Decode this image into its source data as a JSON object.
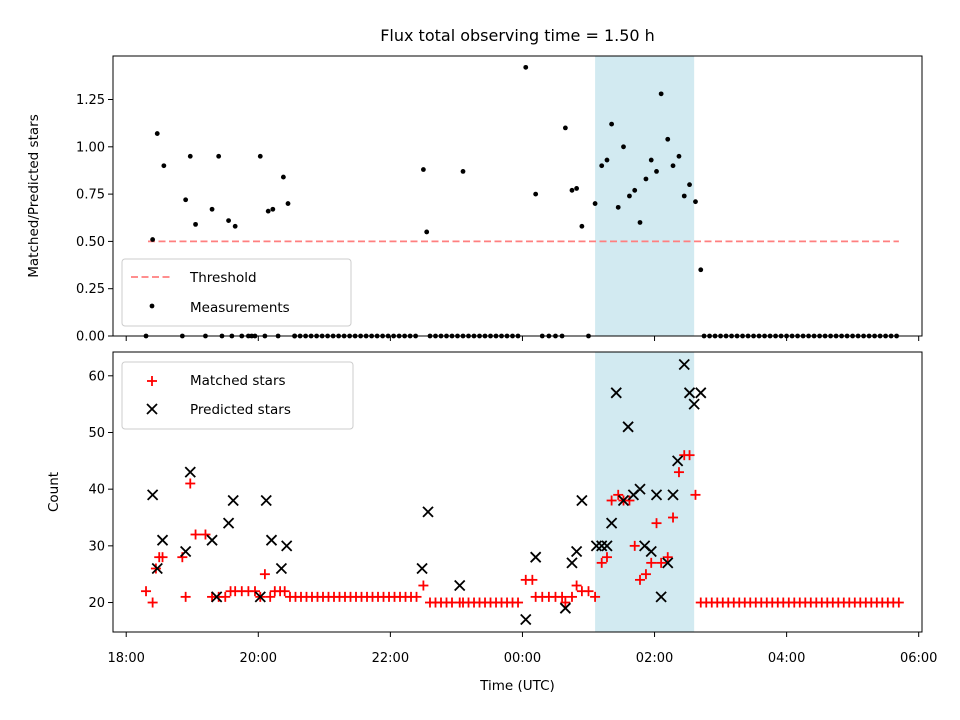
{
  "colors": {
    "match_marker": "#ff0000",
    "pred_marker": "#000000",
    "measure_marker": "#000000",
    "threshold_line": "#ff7f7f",
    "highlight_band": "#add8e6"
  },
  "chart_data": [
    {
      "type": "scatter",
      "title": "Flux total observing time = 1.50 h",
      "xlabel": "",
      "ylabel": "Matched/Predicted stars",
      "xlim_hours": [
        17.8,
        30.05
      ],
      "ylim": [
        0,
        1.48
      ],
      "yticks": [
        "0.00",
        "0.25",
        "0.50",
        "0.75",
        "1.00",
        "1.25"
      ],
      "highlight_band_hours": [
        25.1,
        26.6
      ],
      "legend": [
        "Threshold",
        "Measurements"
      ],
      "legend_position": "lower-left",
      "threshold": {
        "name": "Threshold",
        "value": 0.5,
        "x_hours": [
          18.33,
          29.7
        ]
      },
      "series": [
        {
          "name": "Measurements",
          "points": [
            [
              18.3,
              0.0
            ],
            [
              18.4,
              0.51
            ],
            [
              18.47,
              1.07
            ],
            [
              18.57,
              0.9
            ],
            [
              18.85,
              0.0
            ],
            [
              18.9,
              0.72
            ],
            [
              18.97,
              0.95
            ],
            [
              19.05,
              0.59
            ],
            [
              19.2,
              0.0
            ],
            [
              19.3,
              0.67
            ],
            [
              19.4,
              0.95
            ],
            [
              19.45,
              0.0
            ],
            [
              19.55,
              0.61
            ],
            [
              19.6,
              0.0
            ],
            [
              19.65,
              0.58
            ],
            [
              19.75,
              0.0
            ],
            [
              19.85,
              0.0
            ],
            [
              19.9,
              0.0
            ],
            [
              19.95,
              0.0
            ],
            [
              20.03,
              0.95
            ],
            [
              20.1,
              0.0
            ],
            [
              20.15,
              0.66
            ],
            [
              20.22,
              0.67
            ],
            [
              20.3,
              0.0
            ],
            [
              20.38,
              0.84
            ],
            [
              20.45,
              0.7
            ],
            [
              20.55,
              0.0
            ],
            [
              22.5,
              0.88
            ],
            [
              22.55,
              0.55
            ],
            [
              23.1,
              0.87
            ],
            [
              24.05,
              1.42
            ],
            [
              24.2,
              0.75
            ],
            [
              24.3,
              0.0
            ],
            [
              24.4,
              0.0
            ],
            [
              24.5,
              0.0
            ],
            [
              24.6,
              0.0
            ],
            [
              24.65,
              1.1
            ],
            [
              24.75,
              0.77
            ],
            [
              24.82,
              0.78
            ],
            [
              24.9,
              0.58
            ],
            [
              25.0,
              0.0
            ],
            [
              25.1,
              0.7
            ],
            [
              25.2,
              0.9
            ],
            [
              25.28,
              0.93
            ],
            [
              25.35,
              1.12
            ],
            [
              25.45,
              0.68
            ],
            [
              25.53,
              1.0
            ],
            [
              25.62,
              0.74
            ],
            [
              25.7,
              0.77
            ],
            [
              25.78,
              0.6
            ],
            [
              25.87,
              0.83
            ],
            [
              25.95,
              0.93
            ],
            [
              26.03,
              0.87
            ],
            [
              26.1,
              1.28
            ],
            [
              26.2,
              1.04
            ],
            [
              26.28,
              0.9
            ],
            [
              26.37,
              0.95
            ],
            [
              26.45,
              0.74
            ],
            [
              26.53,
              0.8
            ],
            [
              26.62,
              0.71
            ],
            [
              26.7,
              0.35
            ]
          ],
          "zero_run_hours": [
            [
              20.55,
              22.45
            ],
            [
              22.6,
              24.0
            ],
            [
              26.75,
              29.7
            ]
          ],
          "zero_run_step_hours": 0.0833
        }
      ]
    },
    {
      "type": "scatter",
      "title": "",
      "xlabel": "Time (UTC)",
      "ylabel": "Count",
      "xlim_hours": [
        17.8,
        30.05
      ],
      "ylim": [
        14.8,
        64.2
      ],
      "yticks": [
        20,
        30,
        40,
        50,
        60
      ],
      "xtick_hours": [
        18,
        20,
        22,
        24,
        26,
        28,
        30
      ],
      "xtick_labels": [
        "18:00",
        "20:00",
        "22:00",
        "00:00",
        "02:00",
        "04:00",
        "06:00"
      ],
      "highlight_band_hours": [
        25.1,
        26.6
      ],
      "legend": [
        "Matched stars",
        "Predicted stars"
      ],
      "legend_position": "upper-left",
      "series": [
        {
          "name": "Matched stars",
          "marker": "plus",
          "points": [
            [
              18.3,
              22
            ],
            [
              18.4,
              20
            ],
            [
              18.45,
              26
            ],
            [
              18.5,
              28
            ],
            [
              18.55,
              28
            ],
            [
              18.85,
              28
            ],
            [
              18.9,
              21
            ],
            [
              18.97,
              41
            ],
            [
              19.05,
              32
            ],
            [
              19.2,
              32
            ],
            [
              19.3,
              21
            ],
            [
              19.4,
              21
            ],
            [
              19.5,
              21
            ],
            [
              19.58,
              22
            ],
            [
              19.65,
              22
            ],
            [
              19.75,
              22
            ],
            [
              19.85,
              22
            ],
            [
              19.95,
              22
            ],
            [
              20.03,
              21
            ],
            [
              20.1,
              25
            ],
            [
              20.18,
              21
            ],
            [
              20.25,
              22
            ],
            [
              20.33,
              22
            ],
            [
              20.4,
              22
            ],
            [
              22.5,
              23
            ],
            [
              23.05,
              20
            ],
            [
              24.05,
              24
            ],
            [
              24.15,
              24
            ],
            [
              24.2,
              21
            ],
            [
              24.3,
              21
            ],
            [
              24.4,
              21
            ],
            [
              24.5,
              21
            ],
            [
              24.6,
              21
            ],
            [
              24.65,
              20
            ],
            [
              24.75,
              21
            ],
            [
              24.82,
              23
            ],
            [
              24.9,
              22
            ],
            [
              25.0,
              22
            ],
            [
              25.1,
              21
            ],
            [
              25.2,
              27
            ],
            [
              25.28,
              28
            ],
            [
              25.35,
              38
            ],
            [
              25.45,
              39
            ],
            [
              25.53,
              38
            ],
            [
              25.62,
              38
            ],
            [
              25.7,
              30
            ],
            [
              25.78,
              24
            ],
            [
              25.87,
              25
            ],
            [
              25.95,
              27
            ],
            [
              26.03,
              34
            ],
            [
              26.1,
              27
            ],
            [
              26.2,
              28
            ],
            [
              26.28,
              35
            ],
            [
              26.37,
              43
            ],
            [
              26.45,
              46
            ],
            [
              26.53,
              46
            ],
            [
              26.62,
              39
            ]
          ],
          "runs": [
            {
              "from_hours": 20.48,
              "to_hours": 22.43,
              "value": 21
            },
            {
              "from_hours": 22.6,
              "to_hours": 23.0,
              "value": 20
            },
            {
              "from_hours": 23.1,
              "to_hours": 23.98,
              "value": 20
            },
            {
              "from_hours": 26.7,
              "to_hours": 29.7,
              "value": 20
            }
          ],
          "run_step_hours": 0.0833
        },
        {
          "name": "Predicted stars",
          "marker": "x",
          "points": [
            [
              18.4,
              39
            ],
            [
              18.47,
              26
            ],
            [
              18.55,
              31
            ],
            [
              18.9,
              29
            ],
            [
              18.97,
              43
            ],
            [
              19.3,
              31
            ],
            [
              19.37,
              21
            ],
            [
              19.55,
              34
            ],
            [
              19.62,
              38
            ],
            [
              20.03,
              21
            ],
            [
              20.12,
              38
            ],
            [
              20.2,
              31
            ],
            [
              20.35,
              26
            ],
            [
              20.43,
              30
            ],
            [
              22.48,
              26
            ],
            [
              22.57,
              36
            ],
            [
              23.05,
              23
            ],
            [
              24.05,
              17
            ],
            [
              24.2,
              28
            ],
            [
              24.65,
              19
            ],
            [
              24.75,
              27
            ],
            [
              24.82,
              29
            ],
            [
              24.9,
              38
            ],
            [
              25.12,
              30
            ],
            [
              25.2,
              30
            ],
            [
              25.28,
              30
            ],
            [
              25.35,
              34
            ],
            [
              25.42,
              57
            ],
            [
              25.53,
              38
            ],
            [
              25.6,
              51
            ],
            [
              25.68,
              39
            ],
            [
              25.78,
              40
            ],
            [
              25.85,
              30
            ],
            [
              25.95,
              29
            ],
            [
              26.03,
              39
            ],
            [
              26.1,
              21
            ],
            [
              26.2,
              27
            ],
            [
              26.28,
              39
            ],
            [
              26.35,
              45
            ],
            [
              26.45,
              62
            ],
            [
              26.53,
              57
            ],
            [
              26.6,
              55
            ],
            [
              26.7,
              57
            ]
          ]
        }
      ]
    }
  ]
}
